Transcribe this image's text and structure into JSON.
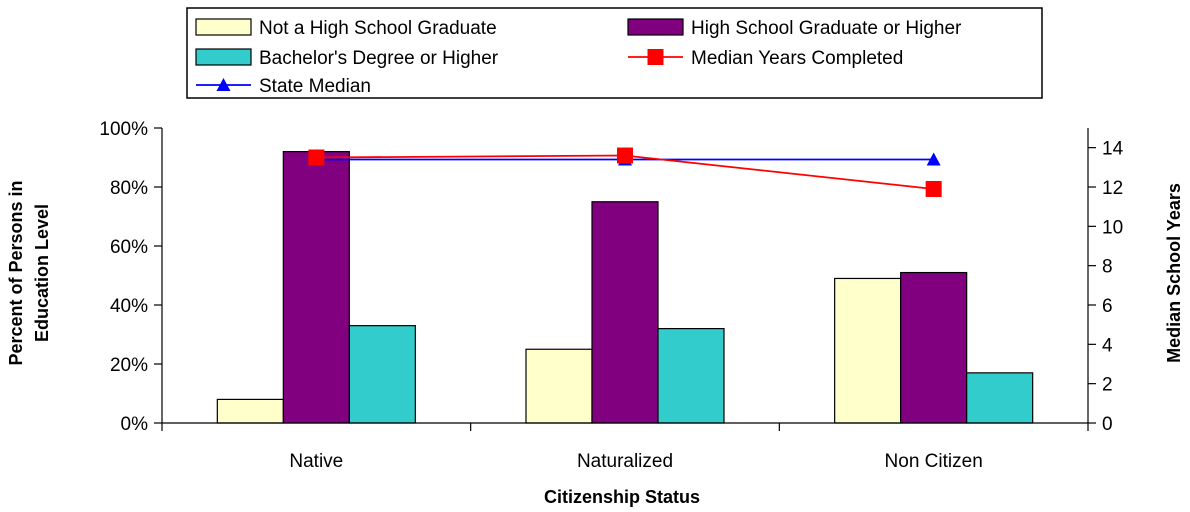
{
  "chart_data": {
    "type": "bar",
    "categories": [
      "Native",
      "Naturalized",
      "Non Citizen"
    ],
    "xlabel": "Citizenship Status",
    "ylabel": "Percent of Persons in Education Level",
    "ylabel_lines": [
      "Percent of Persons in",
      "Education Level"
    ],
    "y2label": "Median School Years",
    "ylim": [
      0,
      100
    ],
    "yticks": [
      "0%",
      "20%",
      "40%",
      "60%",
      "80%",
      "100%"
    ],
    "y2lim": [
      0,
      15
    ],
    "y2ticks": [
      "0",
      "2",
      "4",
      "6",
      "8",
      "10",
      "12",
      "14"
    ],
    "grid": false,
    "legend_position": "top",
    "series": [
      {
        "name": "Not a High School Graduate",
        "type": "bar",
        "axis": "left",
        "color": "#ffffcc",
        "values": [
          8,
          25,
          49
        ]
      },
      {
        "name": "High School Graduate or Higher",
        "type": "bar",
        "axis": "left",
        "color": "#800080",
        "values": [
          92,
          75,
          51
        ]
      },
      {
        "name": "Bachelor's Degree or Higher",
        "type": "bar",
        "axis": "left",
        "color": "#33cccc",
        "values": [
          33,
          32,
          17
        ]
      },
      {
        "name": "Median Years Completed",
        "type": "line",
        "axis": "right",
        "color": "#ff0000",
        "marker": "square",
        "values": [
          13.5,
          13.6,
          11.9
        ]
      },
      {
        "name": "State Median",
        "type": "line",
        "axis": "right",
        "color": "#0000ff",
        "marker": "triangle",
        "values": [
          13.4,
          13.4,
          13.4
        ]
      }
    ]
  }
}
